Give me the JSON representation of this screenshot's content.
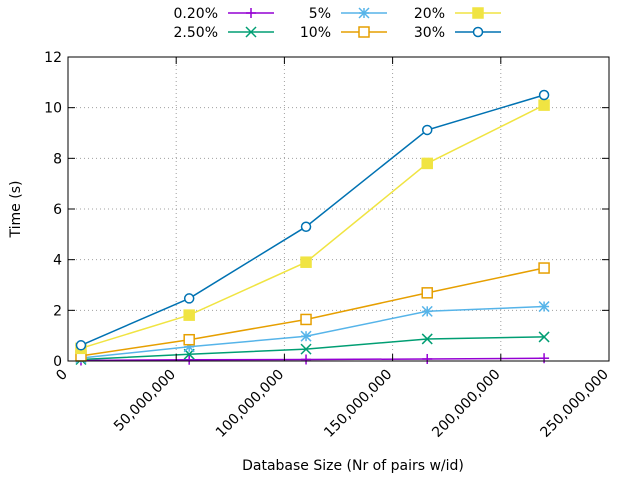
{
  "chart_data": {
    "type": "line",
    "title": "",
    "xlabel": "Database Size (Nr of pairs w/id)",
    "ylabel": "Time (s)",
    "xlim": [
      0,
      250000000
    ],
    "ylim": [
      0,
      12
    ],
    "grid": true,
    "legend_position": "top",
    "x_ticks": [
      {
        "value": 0,
        "label": "0"
      },
      {
        "value": 50000000,
        "label": "50,000,000"
      },
      {
        "value": 100000000,
        "label": "100,000,000"
      },
      {
        "value": 150000000,
        "label": "150,000,000"
      },
      {
        "value": 200000000,
        "label": "200,000,000"
      },
      {
        "value": 250000000,
        "label": "250,000,000"
      }
    ],
    "y_ticks": [
      {
        "value": 0,
        "label": "0"
      },
      {
        "value": 2,
        "label": "2"
      },
      {
        "value": 4,
        "label": "4"
      },
      {
        "value": 6,
        "label": "6"
      },
      {
        "value": 8,
        "label": "8"
      },
      {
        "value": 10,
        "label": "10"
      },
      {
        "value": 12,
        "label": "12"
      }
    ],
    "x": [
      6000000,
      56000000,
      110000000,
      166000000,
      220000000
    ],
    "series": [
      {
        "name": "0.20%",
        "color": "#9400d3",
        "marker": "plus",
        "values": [
          0.02,
          0.05,
          0.06,
          0.08,
          0.11
        ]
      },
      {
        "name": "2.50%",
        "color": "#009e73",
        "marker": "cross",
        "values": [
          0.06,
          0.27,
          0.47,
          0.87,
          0.95
        ]
      },
      {
        "name": "5%",
        "color": "#56b4e9",
        "marker": "star",
        "values": [
          0.12,
          0.56,
          0.98,
          1.96,
          2.15
        ]
      },
      {
        "name": "10%",
        "color": "#e69f00",
        "marker": "square-open",
        "values": [
          0.2,
          0.84,
          1.64,
          2.69,
          3.67
        ]
      },
      {
        "name": "20%",
        "color": "#f0e442",
        "marker": "square-filled",
        "values": [
          0.5,
          1.81,
          3.9,
          7.8,
          10.1
        ]
      },
      {
        "name": "30%",
        "color": "#0072b2",
        "marker": "circle-open",
        "values": [
          0.62,
          2.47,
          5.3,
          9.12,
          10.5
        ]
      }
    ]
  }
}
